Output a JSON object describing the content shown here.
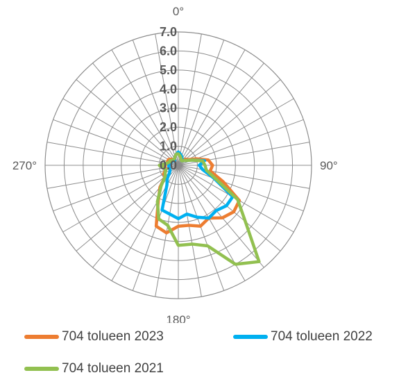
{
  "chart_data": {
    "type": "radar",
    "title": "",
    "angle_labels": [
      {
        "deg": 0,
        "label": "0°"
      },
      {
        "deg": 90,
        "label": "90°"
      },
      {
        "deg": 180,
        "label": "180°"
      },
      {
        "deg": 270,
        "label": "270°"
      }
    ],
    "angles_deg": [
      0,
      10,
      20,
      30,
      40,
      50,
      60,
      70,
      80,
      90,
      100,
      110,
      120,
      130,
      140,
      150,
      160,
      170,
      180,
      190,
      200,
      210,
      220,
      230,
      240,
      250,
      260,
      270,
      280,
      290,
      300,
      310,
      320,
      330,
      340,
      350
    ],
    "radial_ticks": [
      "0.0",
      "1.0",
      "2.0",
      "3.0",
      "4.0",
      "5.0",
      "6.0",
      "7.0"
    ],
    "rlim": [
      0,
      7
    ],
    "grid": true,
    "legend_position": "bottom",
    "series": [
      {
        "name": "704 tolueen 2023",
        "color": "#ED7D31",
        "values": [
          0.7,
          0.6,
          0.5,
          0.4,
          0.4,
          0.5,
          0.6,
          1.0,
          1.6,
          1.8,
          1.7,
          2.5,
          3.7,
          3.8,
          3.6,
          3.2,
          3.4,
          3.2,
          3.2,
          3.6,
          3.4,
          2.1,
          1.5,
          0.9,
          0.9,
          0.7,
          0.7,
          0.7,
          0.6,
          0.6,
          0.6,
          0.5,
          0.4,
          0.4,
          0.5,
          0.6
        ]
      },
      {
        "name": "704 tolueen 2022",
        "color": "#00B0F0",
        "values": [
          0.7,
          0.6,
          0.5,
          0.4,
          0.3,
          0.4,
          0.5,
          0.8,
          1.4,
          1.1,
          1.3,
          2.0,
          3.3,
          3.3,
          3.1,
          3.2,
          2.9,
          2.6,
          2.8,
          2.6,
          2.5,
          1.2,
          0.9,
          0.6,
          0.5,
          0.5,
          0.5,
          0.5,
          0.4,
          0.4,
          0.4,
          0.4,
          0.3,
          0.4,
          0.5,
          0.6
        ]
      },
      {
        "name": "704 tolueen 2021",
        "color": "#92C050",
        "values": [
          0.6,
          0.5,
          0.4,
          0.3,
          0.3,
          0.4,
          0.5,
          0.8,
          1.3,
          1.4,
          1.5,
          2.1,
          3.6,
          4.6,
          6.6,
          6.0,
          4.5,
          4.2,
          4.2,
          3.2,
          3.0,
          2.2,
          1.4,
          0.9,
          0.8,
          0.7,
          0.8,
          1.0,
          0.6,
          0.5,
          0.5,
          0.4,
          0.4,
          0.4,
          0.5,
          0.6
        ]
      }
    ]
  }
}
